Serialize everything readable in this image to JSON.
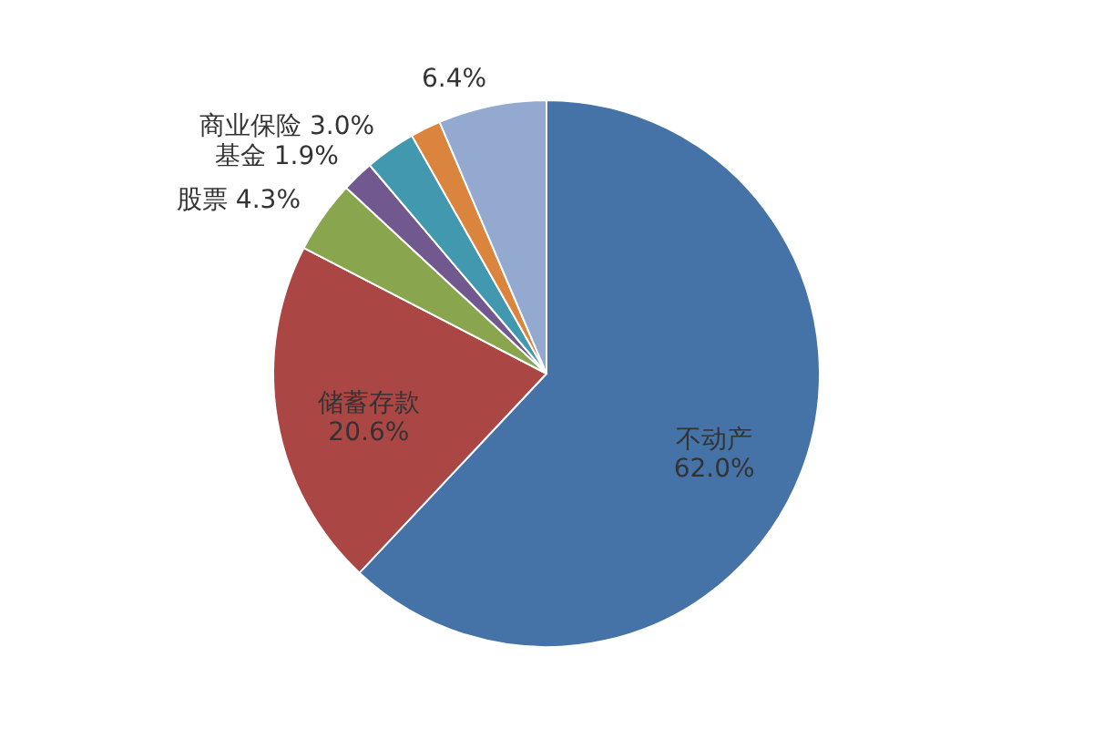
{
  "chart_data": {
    "type": "pie",
    "categories": [
      "不动产",
      "储蓄存款",
      "股票",
      "基金",
      "商业保险",
      null,
      null
    ],
    "values": [
      62.0,
      20.6,
      4.3,
      1.9,
      3.0,
      1.8,
      6.4
    ],
    "value_labels": [
      "62.0%",
      "20.6%",
      "4.3%",
      "1.9%",
      "3.0%",
      null,
      "6.4%"
    ],
    "colors": [
      "#4572a7",
      "#aa4643",
      "#89a54e",
      "#71588f",
      "#4198af",
      "#db843d",
      "#93a9cf"
    ]
  }
}
